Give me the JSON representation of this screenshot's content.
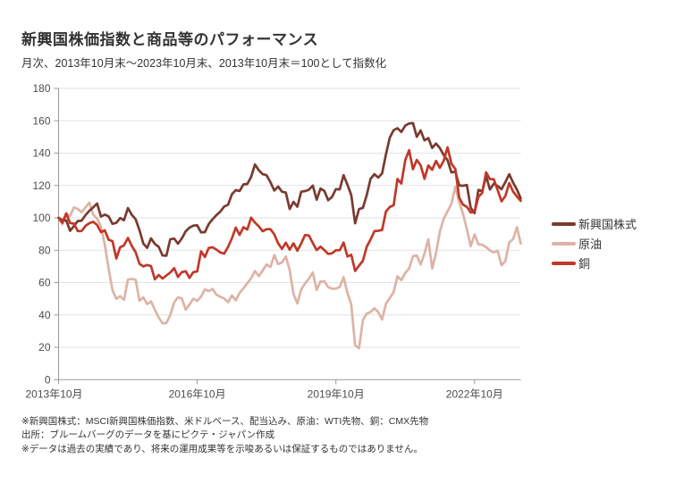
{
  "footnotes": [
    "※新興国株式：MSCI新興国株価指数、米ドルベース、配当込み、原油：WTI先物、銅：CMX先物",
    "出所：ブルームバーグのデータを基にピクテ・ジャパン作成",
    "※データは過去の実績であり、将来の運用成果等を示唆あるいは保証するものではありません。"
  ],
  "chart_data": {
    "type": "line",
    "title": "新興国株価指数と商品等のパフォーマンス",
    "subtitle": "月次、2013年10月末～2023年10月末、2013年10月末＝100として指数化",
    "ylim": [
      0,
      180
    ],
    "y_ticks": [
      0,
      20,
      40,
      60,
      80,
      100,
      120,
      140,
      160,
      180
    ],
    "months_total": 120,
    "x_tick_month_indices": [
      0,
      36,
      72,
      108
    ],
    "x_tick_labels": [
      "2013年10月",
      "2016年10月",
      "2019年10月",
      "2022年10月"
    ],
    "grid": "horizontal-only",
    "legend_position": "right",
    "axis_color": "#999999",
    "grid_color": "#e2e2e2",
    "tick_label_color": "#4d4d4d",
    "series": [
      {
        "name": "新興国株式",
        "color": "#793a2f",
        "values": [
          100,
          98.5,
          98.4,
          92,
          95,
          98,
          98.3,
          101.7,
          104.4,
          106.5,
          108.9,
          100.8,
          102,
          100.9,
          96.3,
          96.9,
          99.9,
          98.5,
          106.1,
          101.9,
          99.2,
          92.4,
          84.1,
          81.5,
          87.3,
          83.9,
          82.1,
          76.8,
          76.6,
          86.7,
          87.2,
          84,
          87.3,
          91.7,
          94,
          95.2,
          95.4,
          91,
          91.2,
          96.2,
          99.2,
          101.7,
          103.9,
          107,
          108.1,
          114.6,
          117.1,
          116.6,
          120.7,
          120.9,
          125.3,
          133,
          129.4,
          127,
          126.4,
          122,
          116.9,
          119.4,
          116.2,
          115.6,
          105.5,
          109.9,
          106.9,
          116.2,
          116.5,
          117.4,
          119.9,
          111.2,
          118.1,
          116.6,
          110.9,
          113,
          117.8,
          117.6,
          126.4,
          120.5,
          114.1,
          96.6,
          105.4,
          106.2,
          114.1,
          124.2,
          127,
          124.9,
          127.5,
          139.3,
          149.6,
          154.2,
          155.4,
          153.1,
          157,
          158.3,
          158.6,
          150.1,
          154,
          147.9,
          149.3,
          143.2,
          145.9,
          143.1,
          138.8,
          135.7,
          128.1,
          128.6,
          120.1,
          119.8,
          120.3,
          106.2,
          102.9,
          117.2,
          116.5,
          125.7,
          117.5,
          121.1,
          119.7,
          117.7,
          122.2,
          127,
          121.8,
          117.5,
          112
        ]
      },
      {
        "name": "原油",
        "color": "#ddb3a6",
        "values": [
          100,
          96,
          102.2,
          101.2,
          106.5,
          105.5,
          103.5,
          106.6,
          109.4,
          102,
          99.6,
          94.7,
          83.6,
          68.7,
          55.3,
          50,
          51.6,
          49.4,
          61.9,
          62.3,
          61.8,
          48.8,
          50.9,
          46.7,
          48.4,
          43.2,
          38.4,
          34.9,
          35,
          39.8,
          47.7,
          50.9,
          50.2,
          43.2,
          46.4,
          50.1,
          48.7,
          51.3,
          55.8,
          54.8,
          56.1,
          52.5,
          51.2,
          50.2,
          47.8,
          52.1,
          49,
          53.7,
          56.5,
          59.6,
          62.7,
          67.2,
          64,
          67.4,
          71.2,
          69.6,
          77,
          71.4,
          72.5,
          76.1,
          67.8,
          52.9,
          47.1,
          55.9,
          59.4,
          62.4,
          66.3,
          55.5,
          60.7,
          60.8,
          57.2,
          56.2,
          56.3,
          57.3,
          63.4,
          53.6,
          46.5,
          21.3,
          19.5,
          36.9,
          40.8,
          41.8,
          44.2,
          41.7,
          37.2,
          47,
          50.4,
          54.2,
          63.9,
          61.5,
          66,
          68.8,
          76.3,
          76.8,
          71.1,
          77.9,
          86.8,
          68.7,
          78.1,
          91.6,
          99.4,
          104.1,
          108.7,
          119.1,
          109.8,
          102.4,
          93,
          82.5,
          89.8,
          83.7,
          83.4,
          81.9,
          79.9,
          78.6,
          79.7,
          70.7,
          73.3,
          84.9,
          86.8,
          94.3,
          84.1
        ]
      },
      {
        "name": "銅",
        "color": "#c03828",
        "values": [
          100,
          97,
          102.8,
          96.8,
          96.4,
          91.8,
          91.9,
          95.1,
          96.7,
          97.6,
          95.6,
          91.2,
          92.3,
          86.5,
          85.6,
          74.9,
          81.8,
          83,
          87.6,
          82.7,
          78.8,
          71.6,
          70,
          70.9,
          70.2,
          62,
          64.7,
          62.5,
          64.4,
          66.2,
          68.9,
          63.5,
          66.5,
          67,
          62.9,
          66.5,
          66.9,
          79.3,
          75.8,
          81.4,
          81.8,
          80.4,
          78.6,
          77.9,
          82.1,
          87.3,
          94,
          89.5,
          94.2,
          92.8,
          100.1,
          97.1,
          94.7,
          91.7,
          93,
          93,
          89.8,
          84.3,
          80.8,
          84.7,
          80.4,
          84.3,
          79.7,
          84.2,
          89.4,
          89.1,
          84.4,
          80.1,
          82.2,
          80.1,
          77.7,
          78.1,
          80,
          80,
          84.8,
          76.1,
          77.2,
          67.2,
          70.5,
          73.5,
          82.2,
          86.6,
          91.8,
          92,
          92.5,
          104,
          106.7,
          107.8,
          124,
          121.2,
          135.7,
          141.8,
          130,
          135.8,
          132.5,
          124.1,
          132.4,
          129.7,
          135.2,
          130.9,
          135.3,
          143.6,
          133.5,
          130.2,
          112.5,
          108.2,
          106.8,
          103.3,
          103.7,
          113,
          115.5,
          128.1,
          123.9,
          123.9,
          117.2,
          110.2,
          113.5,
          121.5,
          116.3,
          113.2,
          110.5
        ]
      }
    ]
  }
}
